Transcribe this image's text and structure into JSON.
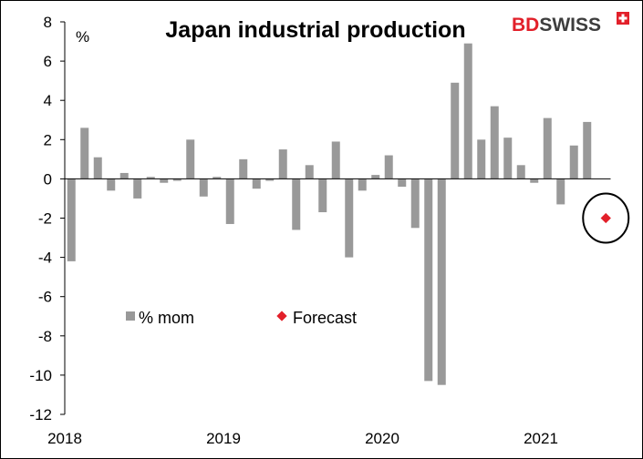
{
  "brand": {
    "name_part1": "BD",
    "name_part2": "SWISS",
    "red": "#e2202a",
    "dark": "#3d3d3d"
  },
  "chart_data": {
    "type": "bar",
    "title": "Japan industrial production",
    "ylabel": "%",
    "xlabel": "",
    "ylim": [
      -12,
      8
    ],
    "yticks": [
      8,
      6,
      4,
      2,
      0,
      -2,
      -4,
      -6,
      -8,
      -10,
      -12
    ],
    "year_labels": [
      "2018",
      "2019",
      "2020",
      "2021"
    ],
    "year_label_index": [
      0,
      12,
      24,
      36
    ],
    "categories": [
      "Jan 2018",
      "Feb 2018",
      "Mar 2018",
      "Apr 2018",
      "May 2018",
      "Jun 2018",
      "Jul 2018",
      "Aug 2018",
      "Sep 2018",
      "Oct 2018",
      "Nov 2018",
      "Dec 2018",
      "Jan 2019",
      "Feb 2019",
      "Mar 2019",
      "Apr 2019",
      "May 2019",
      "Jun 2019",
      "Jul 2019",
      "Aug 2019",
      "Sep 2019",
      "Oct 2019",
      "Nov 2019",
      "Dec 2019",
      "Jan 2020",
      "Feb 2020",
      "Mar 2020",
      "Apr 2020",
      "May 2020",
      "Jun 2020",
      "Jul 2020",
      "Aug 2020",
      "Sep 2020",
      "Oct 2020",
      "Nov 2020",
      "Dec 2020",
      "Jan 2021",
      "Feb 2021",
      "Mar 2021",
      "Apr 2021",
      "May 2021"
    ],
    "series": [
      {
        "name": "% mom",
        "color": "#999999",
        "values": [
          -4.2,
          2.6,
          1.1,
          -0.6,
          0.3,
          -1.0,
          0.1,
          -0.2,
          -0.1,
          2.0,
          -0.9,
          0.1,
          -2.3,
          1.0,
          -0.5,
          -0.1,
          1.5,
          -2.6,
          0.7,
          -1.7,
          1.9,
          -4.0,
          -0.6,
          0.2,
          1.2,
          -0.4,
          -2.5,
          -10.3,
          -10.5,
          4.9,
          6.9,
          2.0,
          3.7,
          2.1,
          0.7,
          -0.2,
          3.1,
          -1.3,
          1.7,
          2.9,
          null
        ]
      },
      {
        "name": "Forecast",
        "color": "#e2202a",
        "points": [
          {
            "category": "May 2021",
            "value": -2.0
          }
        ]
      }
    ],
    "legend": [
      "% mom",
      "Forecast"
    ],
    "annotation": "circle around forecast point"
  }
}
